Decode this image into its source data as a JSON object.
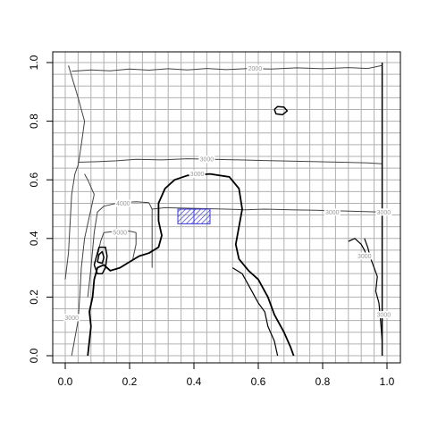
{
  "chart_data": {
    "type": "contour",
    "xlim": [
      0,
      1
    ],
    "ylim": [
      0,
      1
    ],
    "x_ticks": [
      "0.0",
      "0.2",
      "0.4",
      "0.6",
      "0.8",
      "1.0"
    ],
    "y_ticks": [
      "0.0",
      "0.2",
      "0.4",
      "0.6",
      "0.8",
      "1.0"
    ],
    "grid": true,
    "grid_step": 0.04,
    "contour_labels": [
      {
        "text": "2000",
        "x": 0.59,
        "y": 0.98
      },
      {
        "text": "3000",
        "x": 0.44,
        "y": 0.67
      },
      {
        "text": "3000",
        "x": 0.41,
        "y": 0.62
      },
      {
        "text": "3000",
        "x": 0.83,
        "y": 0.49
      },
      {
        "text": "3000",
        "x": 0.02,
        "y": 0.13
      },
      {
        "text": "3000",
        "x": 0.99,
        "y": 0.49
      },
      {
        "text": "3000",
        "x": 0.99,
        "y": 0.14
      },
      {
        "text": "3000",
        "x": 0.93,
        "y": 0.34
      },
      {
        "text": "4000",
        "x": 0.18,
        "y": 0.52
      },
      {
        "text": "5000",
        "x": 0.17,
        "y": 0.42
      }
    ],
    "contours": [
      {
        "name": "2000",
        "color": "#444444",
        "width": 1,
        "points": [
          [
            0.02,
            0.97
          ],
          [
            0.08,
            0.975
          ],
          [
            0.14,
            0.972
          ],
          [
            0.2,
            0.978
          ],
          [
            0.26,
            0.974
          ],
          [
            0.32,
            0.979
          ],
          [
            0.38,
            0.975
          ],
          [
            0.44,
            0.98
          ],
          [
            0.5,
            0.976
          ],
          [
            0.57,
            0.98
          ],
          [
            0.64,
            0.978
          ],
          [
            0.72,
            0.982
          ],
          [
            0.8,
            0.979
          ],
          [
            0.88,
            0.983
          ],
          [
            0.94,
            0.98
          ],
          [
            0.985,
            0.99
          ]
        ]
      },
      {
        "name": "3000",
        "color": "#444444",
        "width": 1,
        "points": [
          [
            0.04,
            0.66
          ],
          [
            0.1,
            0.662
          ],
          [
            0.16,
            0.665
          ],
          [
            0.22,
            0.67
          ],
          [
            0.3,
            0.668
          ],
          [
            0.38,
            0.672
          ],
          [
            0.46,
            0.67
          ],
          [
            0.54,
            0.668
          ],
          [
            0.62,
            0.666
          ],
          [
            0.7,
            0.664
          ],
          [
            0.78,
            0.662
          ],
          [
            0.86,
            0.66
          ],
          [
            0.94,
            0.658
          ],
          [
            0.985,
            0.655
          ]
        ]
      },
      {
        "name": "3000",
        "color": "#444444",
        "width": 1,
        "points": [
          [
            0.27,
            0.5
          ],
          [
            0.31,
            0.505
          ],
          [
            0.5,
            0.5
          ],
          [
            0.56,
            0.498
          ],
          [
            0.62,
            0.5
          ],
          [
            0.7,
            0.498
          ],
          [
            0.78,
            0.496
          ],
          [
            0.86,
            0.494
          ],
          [
            0.92,
            0.492
          ],
          [
            0.985,
            0.49
          ]
        ]
      },
      {
        "name": "4000",
        "color": "#444444",
        "width": 1,
        "points": [
          [
            0.07,
            0.2
          ],
          [
            0.08,
            0.3
          ],
          [
            0.09,
            0.42
          ],
          [
            0.1,
            0.49
          ],
          [
            0.12,
            0.51
          ],
          [
            0.16,
            0.52
          ],
          [
            0.22,
            0.525
          ],
          [
            0.26,
            0.522
          ],
          [
            0.27,
            0.5
          ],
          [
            0.27,
            0.35
          ],
          [
            0.27,
            0.3
          ]
        ]
      },
      {
        "name": "5000",
        "color": "#444444",
        "width": 1,
        "points": [
          [
            0.1,
            0.34
          ],
          [
            0.11,
            0.39
          ],
          [
            0.12,
            0.42
          ],
          [
            0.16,
            0.425
          ],
          [
            0.2,
            0.425
          ],
          [
            0.22,
            0.42
          ],
          [
            0.22,
            0.38
          ],
          [
            0.21,
            0.33
          ]
        ]
      },
      {
        "name": "",
        "color": "#000000",
        "width": 1.8,
        "points": [
          [
            0.07,
            0.0
          ],
          [
            0.075,
            0.05
          ],
          [
            0.08,
            0.1
          ],
          [
            0.075,
            0.15
          ],
          [
            0.085,
            0.2
          ],
          [
            0.09,
            0.26
          ],
          [
            0.1,
            0.3
          ],
          [
            0.12,
            0.31
          ],
          [
            0.14,
            0.29
          ],
          [
            0.17,
            0.3
          ],
          [
            0.2,
            0.32
          ],
          [
            0.23,
            0.34
          ],
          [
            0.26,
            0.35
          ],
          [
            0.29,
            0.37
          ],
          [
            0.3,
            0.41
          ],
          [
            0.29,
            0.46
          ],
          [
            0.29,
            0.52
          ],
          [
            0.31,
            0.57
          ],
          [
            0.34,
            0.6
          ],
          [
            0.38,
            0.615
          ],
          [
            0.45,
            0.62
          ],
          [
            0.51,
            0.61
          ],
          [
            0.54,
            0.57
          ],
          [
            0.55,
            0.5
          ],
          [
            0.54,
            0.44
          ],
          [
            0.53,
            0.38
          ],
          [
            0.54,
            0.33
          ],
          [
            0.57,
            0.29
          ],
          [
            0.6,
            0.26
          ],
          [
            0.63,
            0.2
          ],
          [
            0.65,
            0.14
          ],
          [
            0.68,
            0.08
          ],
          [
            0.7,
            0.03
          ],
          [
            0.71,
            0.0
          ]
        ]
      },
      {
        "name": "",
        "color": "#000000",
        "width": 1.5,
        "points": [
          [
            0.09,
            0.31
          ],
          [
            0.1,
            0.35
          ],
          [
            0.105,
            0.37
          ],
          [
            0.125,
            0.37
          ],
          [
            0.13,
            0.34
          ],
          [
            0.125,
            0.3
          ],
          [
            0.115,
            0.28
          ],
          [
            0.1,
            0.28
          ],
          [
            0.09,
            0.31
          ]
        ]
      },
      {
        "name": "",
        "color": "#000000",
        "width": 1.5,
        "points": [
          [
            0.1,
            0.32
          ],
          [
            0.105,
            0.345
          ],
          [
            0.115,
            0.355
          ],
          [
            0.12,
            0.335
          ],
          [
            0.115,
            0.315
          ],
          [
            0.1,
            0.32
          ]
        ]
      },
      {
        "name": "",
        "color": "#000000",
        "width": 1.5,
        "points": [
          [
            0.65,
            0.84
          ],
          [
            0.66,
            0.85
          ],
          [
            0.68,
            0.848
          ],
          [
            0.69,
            0.835
          ],
          [
            0.675,
            0.822
          ],
          [
            0.655,
            0.825
          ],
          [
            0.65,
            0.84
          ]
        ]
      },
      {
        "name": "",
        "color": "#000000",
        "width": 1.5,
        "points": [
          [
            0.985,
            1.0
          ],
          [
            0.985,
            0.7
          ],
          [
            0.985,
            0.4
          ],
          [
            0.985,
            0.1
          ],
          [
            0.985,
            0.0
          ]
        ]
      },
      {
        "name": "",
        "color": "#444444",
        "width": 1,
        "points": [
          [
            0.0,
            0.26
          ],
          [
            0.01,
            0.35
          ],
          [
            0.015,
            0.45
          ],
          [
            0.02,
            0.55
          ],
          [
            0.03,
            0.62
          ],
          [
            0.04,
            0.65
          ],
          [
            0.05,
            0.72
          ],
          [
            0.06,
            0.8
          ],
          [
            0.04,
            0.88
          ],
          [
            0.01,
            0.99
          ]
        ]
      },
      {
        "name": "",
        "color": "#444444",
        "width": 1,
        "points": [
          [
            0.02,
            0.0
          ],
          [
            0.03,
            0.06
          ],
          [
            0.04,
            0.12
          ],
          [
            0.045,
            0.2
          ],
          [
            0.05,
            0.3
          ],
          [
            0.06,
            0.4
          ],
          [
            0.08,
            0.5
          ],
          [
            0.09,
            0.55
          ],
          [
            0.07,
            0.6
          ],
          [
            0.06,
            0.62
          ]
        ]
      },
      {
        "name": "",
        "color": "#000000",
        "width": 1.2,
        "points": [
          [
            0.93,
            0.4
          ],
          [
            0.94,
            0.37
          ],
          [
            0.95,
            0.33
          ],
          [
            0.96,
            0.3
          ],
          [
            0.97,
            0.27
          ],
          [
            0.965,
            0.22
          ],
          [
            0.975,
            0.18
          ],
          [
            0.98,
            0.12
          ],
          [
            0.985,
            0.05
          ]
        ]
      },
      {
        "name": "",
        "color": "#000000",
        "width": 1.2,
        "points": [
          [
            0.88,
            0.39
          ],
          [
            0.9,
            0.4
          ],
          [
            0.92,
            0.38
          ],
          [
            0.93,
            0.36
          ],
          [
            0.94,
            0.33
          ]
        ]
      },
      {
        "name": "",
        "color": "#000000",
        "width": 1.2,
        "points": [
          [
            0.52,
            0.3
          ],
          [
            0.55,
            0.28
          ],
          [
            0.58,
            0.22
          ],
          [
            0.6,
            0.18
          ],
          [
            0.62,
            0.15
          ],
          [
            0.63,
            0.1
          ],
          [
            0.65,
            0.05
          ],
          [
            0.66,
            0.0
          ]
        ]
      }
    ],
    "highlight_rects": [
      {
        "x0": 0.35,
        "x1": 0.4,
        "y0": 0.45,
        "y1": 0.5,
        "color": "#3a3ad8"
      },
      {
        "x0": 0.4,
        "x1": 0.45,
        "y0": 0.45,
        "y1": 0.5,
        "color": "#3a3ad8"
      }
    ]
  }
}
